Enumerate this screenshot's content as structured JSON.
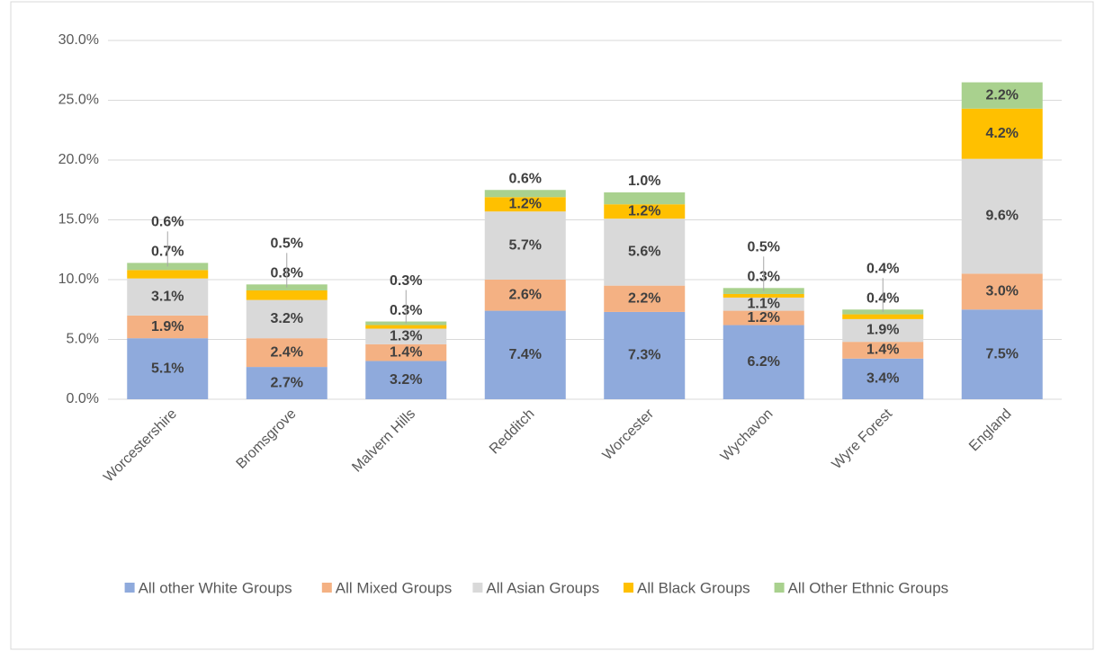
{
  "chart_data": {
    "type": "stacked-bar",
    "categories": [
      "Worcestershire",
      "Bromsgrove",
      "Malvern Hills",
      "Redditch",
      "Worcester",
      "Wychavon",
      "Wyre Forest",
      "England"
    ],
    "series": [
      {
        "name": "All other White Groups",
        "color": "#8faadc",
        "values": [
          5.1,
          2.7,
          3.2,
          7.4,
          7.3,
          6.2,
          3.4,
          7.5
        ],
        "value_labels": [
          "5.1%",
          "2.7%",
          "3.2%",
          "7.4%",
          "7.3%",
          "6.2%",
          "3.4%",
          "7.5%"
        ]
      },
      {
        "name": "All Mixed Groups",
        "color": "#f4b183",
        "values": [
          1.9,
          2.4,
          1.4,
          2.6,
          2.2,
          1.2,
          1.4,
          3.0
        ],
        "value_labels": [
          "1.9%",
          "2.4%",
          "1.4%",
          "2.6%",
          "2.2%",
          "1.2%",
          "1.4%",
          "3.0%"
        ]
      },
      {
        "name": "All Asian Groups",
        "color": "#d9d9d9",
        "values": [
          3.1,
          3.2,
          1.3,
          5.7,
          5.6,
          1.1,
          1.9,
          9.6
        ],
        "value_labels": [
          "3.1%",
          "3.2%",
          "1.3%",
          "5.7%",
          "5.6%",
          "1.1%",
          "1.9%",
          "9.6%"
        ]
      },
      {
        "name": "All Black Groups",
        "color": "#ffc000",
        "values": [
          0.7,
          0.8,
          0.3,
          1.2,
          1.2,
          0.3,
          0.4,
          4.2
        ],
        "value_labels": [
          "0.7%",
          "0.8%",
          "0.3%",
          "1.2%",
          "1.2%",
          "0.3%",
          "0.4%",
          "4.2%"
        ]
      },
      {
        "name": "All Other Ethnic Groups",
        "color": "#a9d18e",
        "values": [
          0.6,
          0.5,
          0.3,
          0.6,
          1.0,
          0.5,
          0.4,
          2.2
        ],
        "value_labels": [
          "0.6%",
          "0.5%",
          "0.3%",
          "0.6%",
          "1.0%",
          "0.5%",
          "0.4%",
          "2.2%"
        ]
      }
    ],
    "ylim": [
      0,
      30
    ],
    "yticks": [
      {
        "value": 0,
        "label": "0.0%"
      },
      {
        "value": 5,
        "label": "5.0%"
      },
      {
        "value": 10,
        "label": "10.0%"
      },
      {
        "value": 15,
        "label": "15.0%"
      },
      {
        "value": 20,
        "label": "20.0%"
      },
      {
        "value": 25,
        "label": "25.0%"
      },
      {
        "value": 30,
        "label": "30.0%"
      }
    ],
    "grid": true,
    "legend": "bottom"
  }
}
